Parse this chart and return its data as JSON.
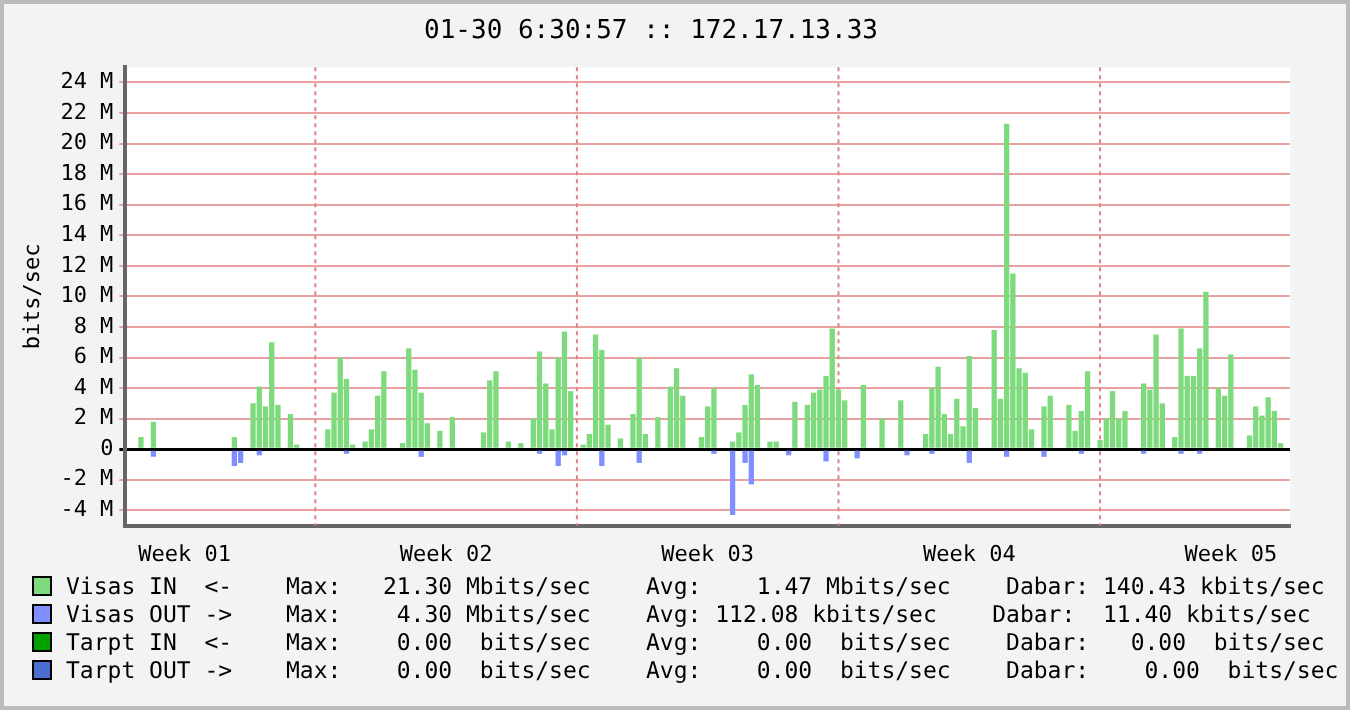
{
  "chart_data": {
    "type": "bar",
    "title": "01-30 6:30:57 :: 172.17.13.33",
    "ylabel": "bits/sec",
    "categories": [
      null,
      null,
      null,
      null,
      null,
      null,
      null,
      null,
      null,
      "Week 01",
      null,
      null,
      null,
      null,
      null,
      null,
      null,
      null,
      null,
      null,
      null,
      null,
      null,
      null,
      null,
      null,
      null,
      null,
      null,
      null,
      null,
      null,
      null,
      null,
      null,
      null,
      null,
      null,
      null,
      null,
      null,
      null,
      null,
      null,
      null,
      null,
      null,
      null,
      null,
      null,
      null,
      "Week 02",
      null,
      null,
      null,
      null,
      null,
      null,
      null,
      null,
      null,
      null,
      null,
      null,
      null,
      null,
      null,
      null,
      null,
      null,
      null,
      null,
      null,
      null,
      null,
      null,
      null,
      null,
      null,
      null,
      null,
      null,
      null,
      null,
      null,
      null,
      null,
      null,
      null,
      null,
      null,
      null,
      null,
      "Week 03",
      null,
      null,
      null,
      null,
      null,
      null,
      null,
      null,
      null,
      null,
      null,
      null,
      null,
      null,
      null,
      null,
      null,
      null,
      null,
      null,
      null,
      null,
      null,
      null,
      null,
      null,
      null,
      null,
      null,
      null,
      null,
      null,
      null,
      null,
      null,
      null,
      null,
      null,
      null,
      null,
      null,
      "Week 04",
      null,
      null,
      null,
      null,
      null,
      null,
      null,
      null,
      null,
      null,
      null,
      null,
      null,
      null,
      null,
      null,
      null,
      null,
      null,
      null,
      null,
      null,
      null,
      null,
      null,
      null,
      null,
      null,
      null,
      null,
      null,
      null,
      null,
      null,
      null,
      null,
      null,
      null,
      null,
      null,
      null,
      "Week 05",
      null,
      null,
      null,
      null,
      null,
      null,
      null,
      null,
      null
    ],
    "ylim": [
      -5,
      25
    ],
    "yticks": [
      {
        "value": -4,
        "label": "-4 M"
      },
      {
        "value": -2,
        "label": "-2 M"
      },
      0,
      {
        "value": 2,
        "label": "2 M"
      },
      {
        "value": 4,
        "label": "4 M"
      },
      {
        "value": 6,
        "label": "6 M"
      },
      {
        "value": 8,
        "label": "8 M"
      },
      {
        "value": 10,
        "label": "10 M"
      },
      {
        "value": 12,
        "label": "12 M"
      },
      {
        "value": 14,
        "label": "14 M"
      },
      {
        "value": 16,
        "label": "16 M"
      },
      {
        "value": 18,
        "label": "18 M"
      },
      {
        "value": 20,
        "label": "20 M"
      },
      {
        "value": 22,
        "label": "22 M"
      },
      {
        "value": 24,
        "label": "24 M"
      }
    ],
    "grid": true,
    "legend": "bottom",
    "annotations": [
      "Max:   21.30 Mbits/sec    Avg:    1.47 Mbits/sec    Dabar: 140.43 kbits/sec",
      "Max:    4.30 Mbits/sec    Avg: 112.08 kbits/sec    Dabar:  11.40 kbits/sec",
      "Max:    0.00  bits/sec    Avg:    0.00  bits/sec    Dabar:   0.00  bits/sec",
      "Max:    0.00  bits/sec    Avg:    0.00  bits/sec    Dabar:    0.00  bits/sec"
    ],
    "series": [
      {
        "name": "Visas IN  <-",
        "color": "#7ddb7d",
        "values": [
          0,
          0,
          0.8,
          0,
          1.8,
          0,
          0,
          0,
          0,
          0,
          0,
          0,
          0,
          0,
          0,
          0,
          0,
          0.8,
          0,
          0,
          3,
          4.1,
          2.8,
          7,
          2.9,
          0,
          2.3,
          0.3,
          0,
          0,
          0,
          0,
          1.3,
          3.7,
          6,
          4.6,
          0.3,
          0,
          0.5,
          1.3,
          3.5,
          5.1,
          0,
          0,
          0.4,
          6.6,
          5.2,
          3.7,
          1.7,
          0,
          1.2,
          0,
          2.1,
          0,
          0,
          0,
          0,
          1.1,
          4.5,
          5.1,
          0,
          0.5,
          0,
          0.4,
          0,
          2,
          6.4,
          4.3,
          1.3,
          6,
          7.7,
          3.8,
          0,
          0.3,
          1,
          7.5,
          6.5,
          1.6,
          0,
          0.7,
          0,
          2.3,
          6,
          1,
          0,
          2.1,
          0,
          4.1,
          5.3,
          3.5,
          0,
          0,
          0.8,
          2.8,
          4,
          0,
          0,
          0.5,
          1.1,
          2.9,
          4.9,
          4.2,
          0,
          0.5,
          0.5,
          0,
          0,
          3.1,
          0,
          2.9,
          3.7,
          3.9,
          4.8,
          7.9,
          3.9,
          3.2,
          0,
          0,
          4.2,
          0,
          0,
          2,
          0,
          0,
          3.2,
          0,
          0,
          0,
          1,
          4,
          5.4,
          2.3,
          1,
          3.3,
          1.5,
          6.1,
          2.7,
          0,
          0,
          7.8,
          3.3,
          21.3,
          11.5,
          5.3,
          5,
          1.3,
          0,
          2.8,
          3.5,
          0,
          0,
          2.9,
          1.2,
          2.5,
          5.1,
          0,
          0.6,
          2,
          3.8,
          2,
          2.5,
          0,
          0,
          4.3,
          3.9,
          7.5,
          3,
          0,
          0.8,
          7.9,
          4.8,
          4.8,
          6.6,
          10.3,
          0,
          4,
          3.5,
          6.2,
          0,
          0,
          0.9,
          2.8,
          2.2,
          3.4,
          2.5,
          0.4,
          0.1
        ]
      },
      {
        "name": "Visas OUT ->",
        "color": "#7f8fff",
        "values": [
          0,
          0,
          0,
          0,
          -0.5,
          0,
          0,
          0,
          0,
          0,
          0,
          0,
          0,
          0,
          0,
          0,
          0,
          -1.1,
          -0.9,
          0,
          0,
          -0.4,
          0,
          0,
          0,
          0,
          0,
          0,
          0,
          0,
          0,
          0,
          0,
          0,
          0,
          -0.3,
          0,
          0,
          0,
          0,
          0,
          0,
          0,
          0,
          0,
          0,
          0,
          -0.5,
          0,
          0,
          0,
          0,
          0,
          0,
          0,
          0,
          0,
          0,
          0,
          0,
          0,
          0,
          0,
          0,
          0,
          0,
          -0.3,
          0,
          0,
          -1.1,
          -0.4,
          0,
          0,
          0,
          0,
          0,
          -1.1,
          0,
          0,
          0,
          0,
          0,
          -0.9,
          0,
          0,
          0,
          0,
          0,
          0,
          0,
          0,
          0,
          0,
          0,
          -0.3,
          0,
          0,
          -4.3,
          0,
          -0.9,
          -2.3,
          0,
          0,
          0,
          0,
          0,
          -0.4,
          0,
          0,
          0,
          0,
          0,
          -0.8,
          0,
          0,
          0,
          0,
          -0.6,
          0,
          0,
          0,
          0,
          0,
          0,
          0,
          -0.4,
          0,
          0,
          0,
          -0.3,
          0,
          0,
          0,
          0,
          0,
          -0.9,
          0,
          0,
          0,
          0,
          0,
          -0.5,
          0,
          0,
          0,
          0,
          0,
          -0.5,
          0,
          0,
          0,
          0,
          0,
          -0.3,
          0,
          0,
          0,
          0,
          0,
          0,
          0,
          0,
          0,
          -0.3,
          0,
          0,
          0,
          0,
          0,
          -0.3,
          0,
          0,
          -0.3,
          0,
          0,
          0,
          0,
          0,
          0,
          0,
          0,
          0,
          0,
          0,
          0,
          0,
          0
        ]
      },
      {
        "name": "Tarpt IN  <-",
        "color": "#00a000",
        "values": [
          0,
          0,
          0,
          0,
          0,
          0,
          0,
          0,
          0,
          0,
          0,
          0,
          0,
          0,
          0,
          0,
          0,
          0,
          0,
          0,
          0,
          0,
          0,
          0,
          0,
          0,
          0,
          0,
          0,
          0,
          0,
          0,
          0,
          0,
          0,
          0,
          0,
          0,
          0,
          0,
          0,
          0,
          0,
          0,
          0,
          0,
          0,
          0,
          0,
          0,
          0,
          0,
          0,
          0,
          0,
          0,
          0,
          0,
          0,
          0,
          0,
          0,
          0,
          0,
          0,
          0,
          0,
          0,
          0,
          0,
          0,
          0,
          0,
          0,
          0,
          0,
          0,
          0,
          0,
          0,
          0,
          0,
          0,
          0,
          0,
          0,
          0,
          0,
          0,
          0,
          0,
          0,
          0,
          0,
          0,
          0,
          0,
          0,
          0,
          0,
          0,
          0,
          0,
          0,
          0,
          0,
          0,
          0,
          0,
          0,
          0,
          0,
          0,
          0,
          0,
          0,
          0,
          0,
          0,
          0,
          0,
          0,
          0,
          0,
          0,
          0,
          0,
          0,
          0,
          0,
          0,
          0,
          0,
          0,
          0,
          0,
          0,
          0,
          0,
          0,
          0,
          0,
          0,
          0,
          0,
          0,
          0,
          0,
          0,
          0,
          0,
          0,
          0,
          0,
          0,
          0,
          0,
          0,
          0,
          0,
          0,
          0,
          0,
          0,
          0,
          0,
          0,
          0,
          0,
          0,
          0,
          0,
          0,
          0,
          0,
          0,
          0,
          0,
          0,
          0,
          0,
          0,
          0,
          0,
          0,
          0,
          0
        ]
      },
      {
        "name": "Tarpt OUT ->",
        "color": "#4a6fd0",
        "values": [
          0,
          0,
          0,
          0,
          0,
          0,
          0,
          0,
          0,
          0,
          0,
          0,
          0,
          0,
          0,
          0,
          0,
          0,
          0,
          0,
          0,
          0,
          0,
          0,
          0,
          0,
          0,
          0,
          0,
          0,
          0,
          0,
          0,
          0,
          0,
          0,
          0,
          0,
          0,
          0,
          0,
          0,
          0,
          0,
          0,
          0,
          0,
          0,
          0,
          0,
          0,
          0,
          0,
          0,
          0,
          0,
          0,
          0,
          0,
          0,
          0,
          0,
          0,
          0,
          0,
          0,
          0,
          0,
          0,
          0,
          0,
          0,
          0,
          0,
          0,
          0,
          0,
          0,
          0,
          0,
          0,
          0,
          0,
          0,
          0,
          0,
          0,
          0,
          0,
          0,
          0,
          0,
          0,
          0,
          0,
          0,
          0,
          0,
          0,
          0,
          0,
          0,
          0,
          0,
          0,
          0,
          0,
          0,
          0,
          0,
          0,
          0,
          0,
          0,
          0,
          0,
          0,
          0,
          0,
          0,
          0,
          0,
          0,
          0,
          0,
          0,
          0,
          0,
          0,
          0,
          0,
          0,
          0,
          0,
          0,
          0,
          0,
          0,
          0,
          0,
          0,
          0,
          0,
          0,
          0,
          0,
          0,
          0,
          0,
          0,
          0,
          0,
          0,
          0,
          0,
          0,
          0,
          0,
          0,
          0,
          0,
          0,
          0,
          0,
          0,
          0,
          0,
          0,
          0,
          0,
          0,
          0,
          0,
          0,
          0,
          0,
          0,
          0,
          0,
          0,
          0,
          0,
          0,
          0,
          0,
          0,
          0
        ]
      }
    ]
  }
}
